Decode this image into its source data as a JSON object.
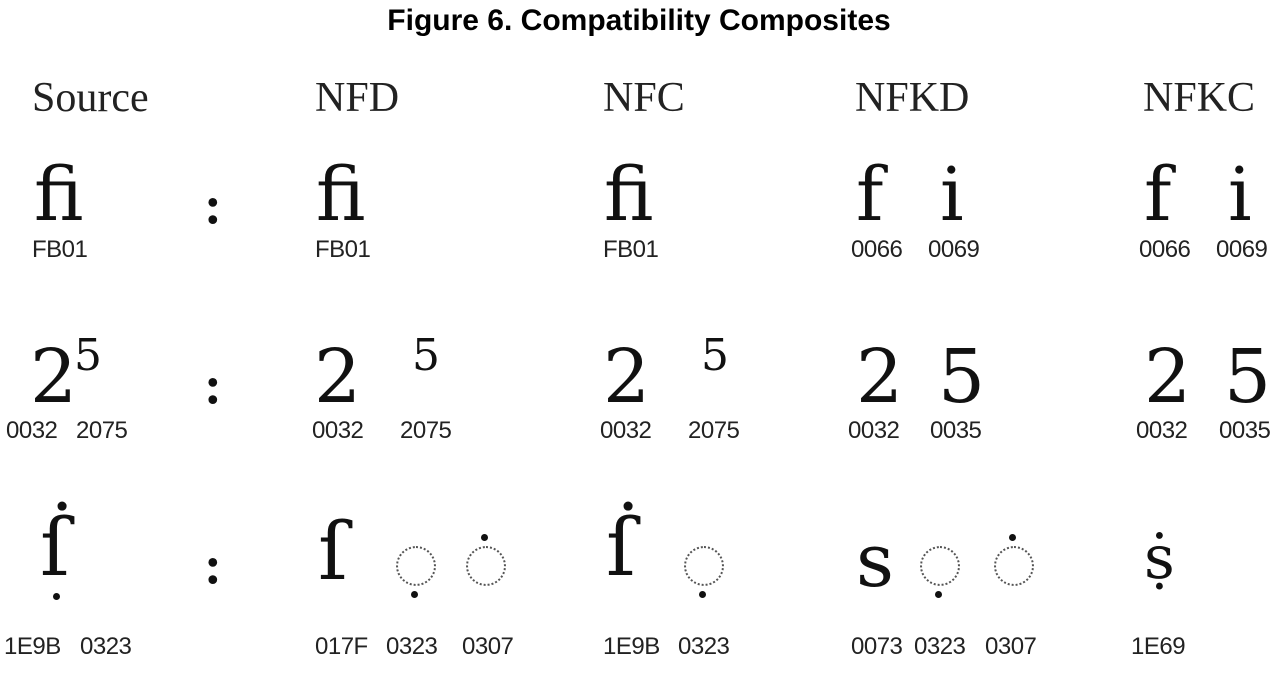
{
  "title": "Figure 6. Compatibility Composites",
  "headers": [
    "Source",
    "NFD",
    "NFC",
    "NFKD",
    "NFKC"
  ],
  "separator": ":",
  "rows": [
    {
      "source": {
        "glyph": "ﬁ",
        "codes": [
          "FB01"
        ]
      },
      "nfd": {
        "glyph": "ﬁ",
        "codes": [
          "FB01"
        ]
      },
      "nfc": {
        "glyph": "ﬁ",
        "codes": [
          "FB01"
        ]
      },
      "nfkd": {
        "glyphs": [
          "f",
          "i"
        ],
        "codes": [
          "0066",
          "0069"
        ]
      },
      "nfkc": {
        "glyphs": [
          "f",
          "i"
        ],
        "codes": [
          "0066",
          "0069"
        ]
      }
    },
    {
      "source": {
        "glyphs": [
          "2",
          "5"
        ],
        "codes": [
          "0032",
          "2075"
        ]
      },
      "nfd": {
        "glyphs": [
          "2",
          "5"
        ],
        "codes": [
          "0032",
          "2075"
        ]
      },
      "nfc": {
        "glyphs": [
          "2",
          "5"
        ],
        "codes": [
          "0032",
          "2075"
        ]
      },
      "nfkd": {
        "glyphs": [
          "2",
          "5"
        ],
        "codes": [
          "0032",
          "0035"
        ]
      },
      "nfkc": {
        "glyphs": [
          "2",
          "5"
        ],
        "codes": [
          "0032",
          "0035"
        ]
      }
    },
    {
      "source": {
        "glyph": "ẛ",
        "codes": [
          "1E9B",
          "0323"
        ]
      },
      "nfd": {
        "glyph": "ſ",
        "codes": [
          "017F",
          "0323",
          "0307"
        ]
      },
      "nfc": {
        "glyph": "ẛ",
        "codes": [
          "1E9B",
          "0323"
        ]
      },
      "nfkd": {
        "glyph": "s",
        "codes": [
          "0073",
          "0323",
          "0307"
        ]
      },
      "nfkc": {
        "glyph": "ṩ",
        "codes": [
          "1E69"
        ]
      }
    }
  ]
}
